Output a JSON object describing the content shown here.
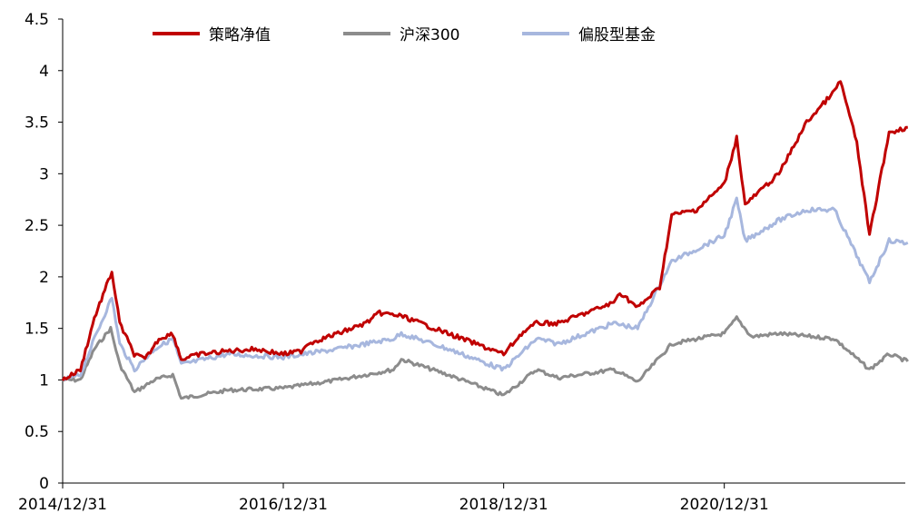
{
  "chart_data": {
    "type": "line",
    "title": "",
    "xlabel": "",
    "ylabel": "",
    "ylim": [
      0,
      4.5
    ],
    "yticks": [
      "0",
      "0.5",
      "1",
      "1.5",
      "2",
      "2.5",
      "3",
      "3.5",
      "4",
      "4.5"
    ],
    "xticks": [
      "2014/12/31",
      "2016/12/31",
      "2018/12/31",
      "2020/12/31"
    ],
    "xlim": [
      "2014/12/31",
      "2022/08/31"
    ],
    "grid": false,
    "legend_position": "top",
    "series": [
      {
        "name": "策略净值",
        "color": "#C00000",
        "points": [
          [
            "2014/12/31",
            1.0
          ],
          [
            "2015/02/28",
            1.1
          ],
          [
            "2015/04/15",
            1.6
          ],
          [
            "2015/06/12",
            2.05
          ],
          [
            "2015/07/08",
            1.55
          ],
          [
            "2015/08/25",
            1.25
          ],
          [
            "2015/09/30",
            1.2
          ],
          [
            "2015/11/15",
            1.4
          ],
          [
            "2015/12/31",
            1.45
          ],
          [
            "2016/01/28",
            1.2
          ],
          [
            "2016/03/31",
            1.25
          ],
          [
            "2016/06/30",
            1.28
          ],
          [
            "2016/09/30",
            1.3
          ],
          [
            "2016/12/31",
            1.25
          ],
          [
            "2017/02/28",
            1.28
          ],
          [
            "2017/03/20",
            1.35
          ],
          [
            "2017/06/30",
            1.45
          ],
          [
            "2017/09/30",
            1.55
          ],
          [
            "2017/11/15",
            1.65
          ],
          [
            "2018/01/26",
            1.62
          ],
          [
            "2018/03/31",
            1.55
          ],
          [
            "2018/06/30",
            1.45
          ],
          [
            "2018/09/30",
            1.35
          ],
          [
            "2018/12/31",
            1.25
          ],
          [
            "2019/02/28",
            1.45
          ],
          [
            "2019/04/19",
            1.55
          ],
          [
            "2019/06/30",
            1.55
          ],
          [
            "2019/09/30",
            1.65
          ],
          [
            "2019/12/31",
            1.75
          ],
          [
            "2020/01/20",
            1.85
          ],
          [
            "2020/03/19",
            1.7
          ],
          [
            "2020/05/31",
            1.9
          ],
          [
            "2020/07/10",
            2.6
          ],
          [
            "2020/09/30",
            2.65
          ],
          [
            "2020/12/31",
            2.9
          ],
          [
            "2021/02/10",
            3.35
          ],
          [
            "2021/03/10",
            2.7
          ],
          [
            "2021/06/30",
            3.0
          ],
          [
            "2021/09/30",
            3.5
          ],
          [
            "2021/12/31",
            3.8
          ],
          [
            "2022/01/20",
            3.9
          ],
          [
            "2022/03/15",
            3.3
          ],
          [
            "2022/04/26",
            2.4
          ],
          [
            "2022/06/30",
            3.4
          ],
          [
            "2022/08/31",
            3.45
          ]
        ]
      },
      {
        "name": "沪深300",
        "color": "#8C8C8C",
        "points": [
          [
            "2014/12/31",
            1.0
          ],
          [
            "2015/02/28",
            1.0
          ],
          [
            "2015/04/15",
            1.3
          ],
          [
            "2015/06/08",
            1.5
          ],
          [
            "2015/07/08",
            1.15
          ],
          [
            "2015/08/26",
            0.88
          ],
          [
            "2015/10/31",
            1.0
          ],
          [
            "2015/12/31",
            1.05
          ],
          [
            "2016/01/28",
            0.82
          ],
          [
            "2016/06/30",
            0.9
          ],
          [
            "2016/12/31",
            0.92
          ],
          [
            "2017/06/30",
            1.0
          ],
          [
            "2017/12/31",
            1.1
          ],
          [
            "2018/01/26",
            1.2
          ],
          [
            "2018/06/30",
            1.05
          ],
          [
            "2018/12/31",
            0.85
          ],
          [
            "2019/04/19",
            1.1
          ],
          [
            "2019/06/30",
            1.02
          ],
          [
            "2019/12/31",
            1.1
          ],
          [
            "2020/03/19",
            0.98
          ],
          [
            "2020/07/10",
            1.35
          ],
          [
            "2020/12/31",
            1.45
          ],
          [
            "2021/02/10",
            1.6
          ],
          [
            "2021/03/31",
            1.42
          ],
          [
            "2021/06/30",
            1.45
          ],
          [
            "2021/12/31",
            1.4
          ],
          [
            "2022/04/26",
            1.1
          ],
          [
            "2022/06/30",
            1.25
          ],
          [
            "2022/08/31",
            1.18
          ]
        ]
      },
      {
        "name": "偏股型基金",
        "color": "#A7B7DE",
        "points": [
          [
            "2014/12/31",
            1.0
          ],
          [
            "2015/02/28",
            1.05
          ],
          [
            "2015/04/15",
            1.4
          ],
          [
            "2015/06/12",
            1.8
          ],
          [
            "2015/07/08",
            1.35
          ],
          [
            "2015/08/26",
            1.1
          ],
          [
            "2015/10/31",
            1.3
          ],
          [
            "2015/12/31",
            1.4
          ],
          [
            "2016/01/28",
            1.15
          ],
          [
            "2016/06/30",
            1.25
          ],
          [
            "2016/12/31",
            1.22
          ],
          [
            "2017/06/30",
            1.3
          ],
          [
            "2017/12/31",
            1.4
          ],
          [
            "2018/01/26",
            1.45
          ],
          [
            "2018/06/30",
            1.3
          ],
          [
            "2018/12/31",
            1.1
          ],
          [
            "2019/04/19",
            1.4
          ],
          [
            "2019/06/30",
            1.35
          ],
          [
            "2019/12/31",
            1.55
          ],
          [
            "2020/03/19",
            1.5
          ],
          [
            "2020/07/10",
            2.15
          ],
          [
            "2020/12/31",
            2.4
          ],
          [
            "2021/02/10",
            2.75
          ],
          [
            "2021/03/10",
            2.35
          ],
          [
            "2021/06/30",
            2.55
          ],
          [
            "2021/09/30",
            2.65
          ],
          [
            "2021/12/31",
            2.65
          ],
          [
            "2022/04/26",
            1.95
          ],
          [
            "2022/06/30",
            2.35
          ],
          [
            "2022/08/31",
            2.33
          ]
        ]
      }
    ]
  }
}
